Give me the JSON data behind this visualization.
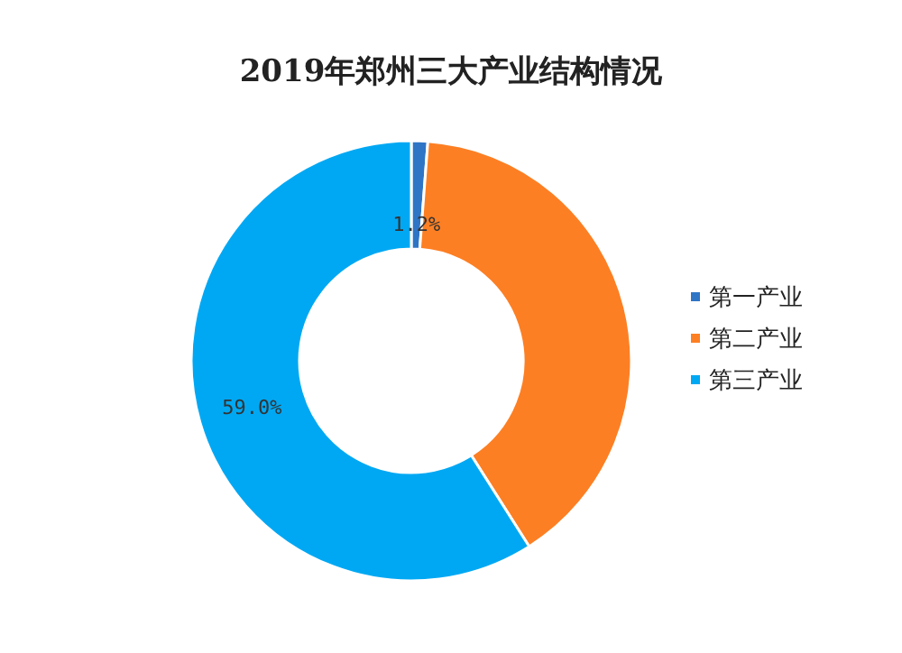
{
  "chart_data": {
    "type": "donut",
    "title": "2019年郑州三大产业结构情况",
    "categories": [
      "第一产业",
      "第二产业",
      "第三产业"
    ],
    "values": [
      1.2,
      39.8,
      59.0
    ],
    "colors": [
      "#2e75c6",
      "#fd7f23",
      "#00a8f3"
    ],
    "value_labels": [
      "1.2%",
      null,
      "59.0%"
    ],
    "legend": "right"
  }
}
